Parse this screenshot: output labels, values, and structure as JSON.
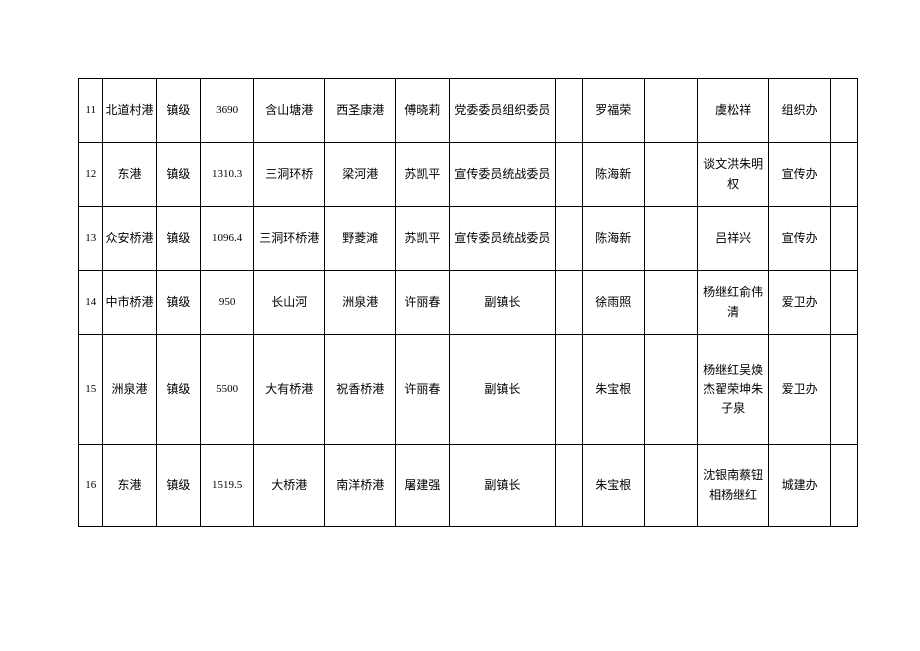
{
  "table": {
    "border_color": "#000000",
    "background_color": "#ffffff",
    "font_family": "SimSun",
    "base_fontsize": 12,
    "rows": [
      {
        "idx": "11",
        "name": "北道村港",
        "level": "镇级",
        "num": "3690",
        "col_a": "含山塘港",
        "col_b": "西圣康港",
        "person": "傅晓莉",
        "role": "党委委员组织委员",
        "empty1": "",
        "person2": "罗福荣",
        "empty2": "",
        "person3": "虞松祥",
        "dept": "组织办",
        "empty3": ""
      },
      {
        "idx": "12",
        "name": "东港",
        "level": "镇级",
        "num": "1310.3",
        "col_a": "三洞环桥",
        "col_b": "梁河港",
        "person": "苏凯平",
        "role": "宣传委员统战委员",
        "empty1": "",
        "person2": "陈海新",
        "empty2": "",
        "person3": "谈文洪朱明权",
        "dept": "宣传办",
        "empty3": ""
      },
      {
        "idx": "13",
        "name": "众安桥港",
        "level": "镇级",
        "num": "1096.4",
        "col_a": "三洞环桥港",
        "col_b": "野菱滩",
        "person": "苏凯平",
        "role": "宣传委员统战委员",
        "empty1": "",
        "person2": "陈海新",
        "empty2": "",
        "person3": "吕祥兴",
        "dept": "宣传办",
        "empty3": ""
      },
      {
        "idx": "14",
        "name": "中市桥港",
        "level": "镇级",
        "num": "950",
        "col_a": "长山河",
        "col_b": "洲泉港",
        "person": "许丽春",
        "role": "副镇长",
        "empty1": "",
        "person2": "徐雨照",
        "empty2": "",
        "person3": "杨继红俞伟清",
        "dept": "爱卫办",
        "empty3": ""
      },
      {
        "idx": "15",
        "name": "洲泉港",
        "level": "镇级",
        "num": "5500",
        "col_a": "大有桥港",
        "col_b": "祝香桥港",
        "person": "许丽春",
        "role": "副镇长",
        "empty1": "",
        "person2": "朱宝根",
        "empty2": "",
        "person3": "杨继红吴焕杰翟荣坤朱子泉",
        "dept": "爱卫办",
        "empty3": ""
      },
      {
        "idx": "16",
        "name": "东港",
        "level": "镇级",
        "num": "1519.5",
        "col_a": "大桥港",
        "col_b": "南洋桥港",
        "person": "屠建强",
        "role": "副镇长",
        "empty1": "",
        "person2": "朱宝根",
        "empty2": "",
        "person3": "沈银南蔡钮相杨继红",
        "dept": "城建办",
        "empty3": ""
      }
    ]
  }
}
